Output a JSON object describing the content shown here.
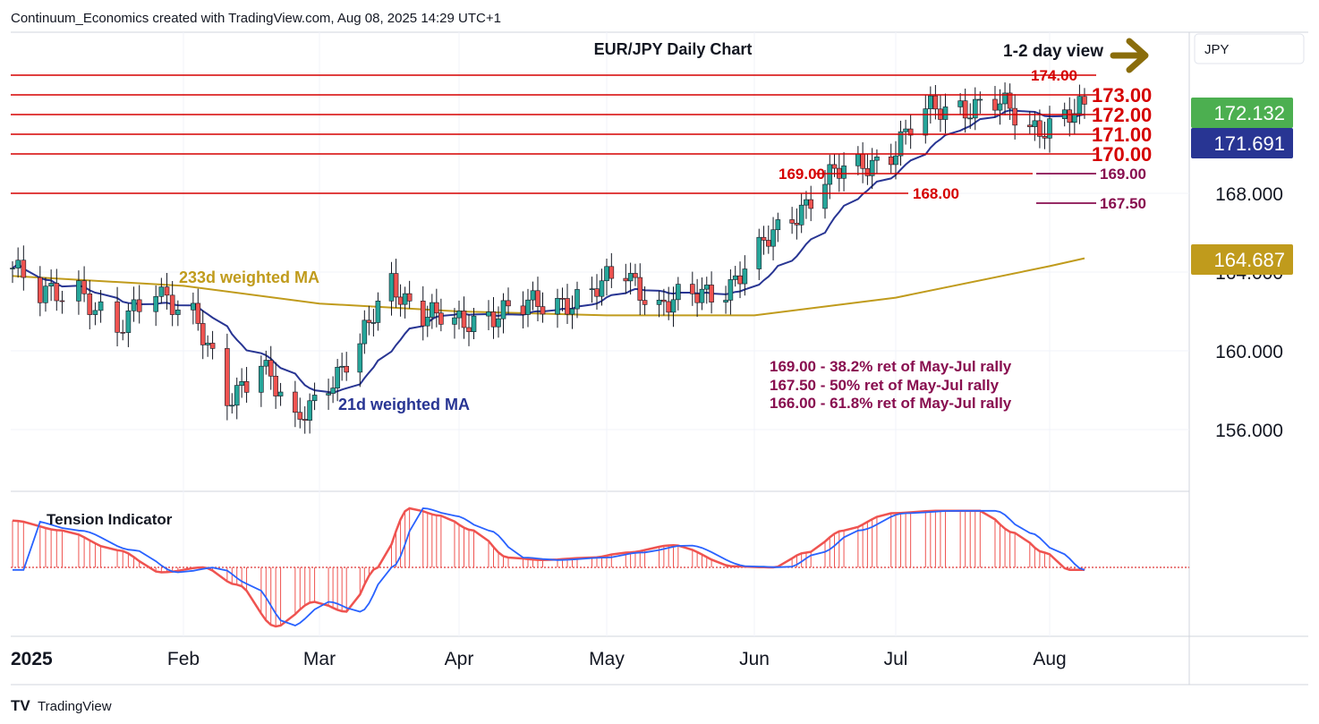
{
  "header": {
    "attribution": "Continuum_Economics created with TradingView.com, Aug 08, 2025 14:29 UTC+1"
  },
  "footer": {
    "brand": "TradingView"
  },
  "currency_button": "JPY",
  "chart_data": {
    "type": "candlestick",
    "title": "EUR/JPY Daily Chart",
    "view_label": "1-2 day view",
    "view_arrow": "right",
    "y_axis": {
      "ticks": [
        "160.000",
        "164.000",
        "168.000",
        "156.000"
      ],
      "ylim": [
        152.5,
        178.0
      ]
    },
    "x_axis": {
      "ticks": [
        "2025",
        "Feb",
        "Mar",
        "Apr",
        "May",
        "Jun",
        "Jul",
        "Aug"
      ]
    },
    "price_tags": [
      {
        "label": "172.132",
        "value": 172.132,
        "color": "#4caf50"
      },
      {
        "label": "171.691",
        "value": 171.691,
        "color": "#283593"
      },
      {
        "label": "164.687",
        "value": 164.687,
        "color": "#c09b1c"
      }
    ],
    "resistance_levels": [
      {
        "label": "174.00",
        "value": 174.0
      },
      {
        "label": "173.00",
        "value": 173.0
      },
      {
        "label": "172.00",
        "value": 172.0
      },
      {
        "label": "171.00",
        "value": 171.0
      },
      {
        "label": "170.00",
        "value": 170.0
      }
    ],
    "support_levels": [
      {
        "label": "169.00",
        "value": 169.0
      },
      {
        "label": "168.00",
        "value": 168.0
      }
    ],
    "retracement_levels": [
      {
        "label": "169.00",
        "value": 169.0
      },
      {
        "label": "167.50",
        "value": 167.5
      }
    ],
    "annotations": [
      "169.00 - 38.2% ret of May-Jul rally",
      "167.50 - 50% ret of May-Jul rally",
      "166.00 - 61.8% ret of May-Jul rally"
    ],
    "ma_labels": {
      "ma233": "233d weighted MA",
      "ma21": "21d weighted MA"
    },
    "colors": {
      "up": "#26a69a",
      "down": "#ef5350",
      "ma21": "#283593",
      "ma233": "#c09b1c",
      "levels": "#d50000",
      "retracement": "#880e4f"
    },
    "ma233": [
      {
        "date": "2025-01-01",
        "value": 163.8
      },
      {
        "date": "2025-02-01",
        "value": 163.3
      },
      {
        "date": "2025-03-01",
        "value": 162.4
      },
      {
        "date": "2025-04-01",
        "value": 162.0
      },
      {
        "date": "2025-05-01",
        "value": 161.8
      },
      {
        "date": "2025-06-01",
        "value": 161.8
      },
      {
        "date": "2025-07-01",
        "value": 162.7
      },
      {
        "date": "2025-08-01",
        "value": 164.3
      },
      {
        "date": "2025-08-08",
        "value": 164.7
      }
    ],
    "candles": [
      {
        "date": "2025-01-01",
        "close": 164.2
      },
      {
        "date": "2025-01-06",
        "close": 162.6
      },
      {
        "date": "2025-01-13",
        "close": 163.4
      },
      {
        "date": "2025-01-20",
        "close": 160.8
      },
      {
        "date": "2025-01-27",
        "close": 163.2
      },
      {
        "date": "2025-02-03",
        "close": 162.0
      },
      {
        "date": "2025-02-10",
        "close": 157.2
      },
      {
        "date": "2025-02-17",
        "close": 159.8
      },
      {
        "date": "2025-02-24",
        "close": 156.0
      },
      {
        "date": "2025-03-03",
        "close": 158.5
      },
      {
        "date": "2025-03-10",
        "close": 160.3
      },
      {
        "date": "2025-03-17",
        "close": 163.4
      },
      {
        "date": "2025-03-24",
        "close": 162.0
      },
      {
        "date": "2025-03-31",
        "close": 161.2
      },
      {
        "date": "2025-04-07",
        "close": 162.0
      },
      {
        "date": "2025-04-14",
        "close": 162.1
      },
      {
        "date": "2025-04-21",
        "close": 162.5
      },
      {
        "date": "2025-04-28",
        "close": 163.0
      },
      {
        "date": "2025-05-05",
        "close": 163.9
      },
      {
        "date": "2025-05-12",
        "close": 162.4
      },
      {
        "date": "2025-05-19",
        "close": 162.6
      },
      {
        "date": "2025-05-26",
        "close": 163.3
      },
      {
        "date": "2025-06-02",
        "close": 165.0
      },
      {
        "date": "2025-06-09",
        "close": 166.8
      },
      {
        "date": "2025-06-16",
        "close": 168.8
      },
      {
        "date": "2025-06-23",
        "close": 169.2
      },
      {
        "date": "2025-06-30",
        "close": 170.2
      },
      {
        "date": "2025-07-07",
        "close": 172.0
      },
      {
        "date": "2025-07-14",
        "close": 172.5
      },
      {
        "date": "2025-07-21",
        "close": 172.6
      },
      {
        "date": "2025-07-28",
        "close": 171.2
      },
      {
        "date": "2025-08-04",
        "close": 172.1
      }
    ]
  },
  "tension_indicator": {
    "title": "Tension Indicator"
  }
}
